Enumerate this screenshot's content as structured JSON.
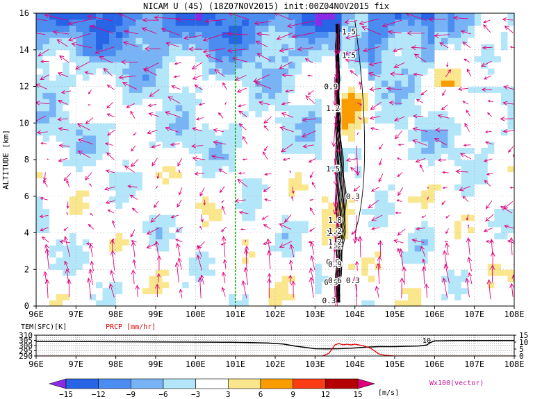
{
  "colors": {
    "vector": "#e0007a",
    "contour": "#000000",
    "reference_line": "#00aa00",
    "temperature_line": "#000000",
    "precip_line": "#e00000",
    "hatch": "#b4b4b4"
  },
  "chart_data": [
    {
      "type": "heatmap",
      "title": "NICAM U (4S) (18Z07NOV2015) init:00Z04NOV2015 fix",
      "xlabel": "",
      "ylabel": "ALTITUDE [km]",
      "xticks": [
        "96E",
        "97E",
        "98E",
        "99E",
        "100E",
        "101E",
        "102E",
        "103E",
        "104E",
        "105E",
        "106E",
        "107E",
        "108E"
      ],
      "yticks": [
        "0",
        "2",
        "4",
        "6",
        "8",
        "10",
        "12",
        "14",
        "16"
      ],
      "xlim": [
        96,
        108
      ],
      "ylim": [
        0,
        16
      ],
      "grid": true,
      "reference_longitude": 101,
      "colorbar": {
        "unit": "[m/s]",
        "levels": [
          -15,
          -12,
          -9,
          -6,
          -3,
          3,
          6,
          9,
          12,
          15
        ],
        "tick_labels": [
          "−15",
          "−12",
          "−9",
          "−6",
          "−3",
          "3",
          "6",
          "9",
          "12",
          "15"
        ],
        "colors": [
          "#8a2be8",
          "#2864e6",
          "#4b8cf0",
          "#78b4f5",
          "#b4e6fa",
          "#ffffff",
          "#fae68c",
          "#fa9b00",
          "#fa3c14",
          "#b40000",
          "#e0007a"
        ]
      },
      "vector_label": "Wx100(vector)",
      "contour_labels": [
        "0.3",
        "0.6",
        "0.9",
        "1.2",
        "1.5",
        "1.8",
        "0.3",
        "0.6",
        "0.9",
        "1.2",
        "1.5",
        "1.5",
        "1.2",
        "0.9",
        "0.6",
        "0.3",
        "0.3"
      ]
    },
    {
      "type": "line",
      "xticks": [
        "96E",
        "97E",
        "98E",
        "99E",
        "100E",
        "101E",
        "102E",
        "103E",
        "104E",
        "105E",
        "106E",
        "107E",
        "108E"
      ],
      "xlim": [
        96,
        108
      ],
      "left_axis_label": "TEM(SFC)[K]",
      "left_ticks": [
        "310",
        "305",
        "300",
        "295",
        "290"
      ],
      "left_ylim": [
        290,
        310
      ],
      "right_axis_label": "PRCP [mm/hr]",
      "right_ticks": [
        "15",
        "10",
        "5",
        "0"
      ],
      "right_ylim": [
        0,
        15
      ],
      "annotation": "10",
      "series": [
        {
          "name": "TEM(SFC)[K]",
          "x": [
            96.0,
            97.0,
            98.0,
            99.0,
            100.0,
            100.9,
            101.4,
            101.8,
            102.2,
            102.5,
            102.8,
            103.0,
            103.3,
            103.6,
            103.9,
            104.3,
            104.6,
            105.0,
            105.3,
            105.6,
            105.8,
            105.9,
            106.0,
            106.5,
            107.0,
            108.0
          ],
          "y": [
            304.0,
            303.9,
            303.7,
            303.5,
            303.3,
            303.1,
            302.9,
            302.5,
            301.5,
            299.5,
            298.0,
            297.0,
            296.8,
            297.0,
            297.5,
            298.5,
            299.0,
            299.0,
            299.3,
            299.6,
            300.5,
            303.0,
            304.5,
            304.8,
            304.8,
            304.8
          ]
        },
        {
          "name": "PRCP [mm/hr]",
          "x": [
            96.0,
            102.0,
            103.0,
            103.2,
            103.35,
            103.5,
            103.6,
            103.7,
            103.8,
            103.9,
            104.0,
            104.2,
            104.4,
            104.6,
            104.75,
            104.9,
            105.0,
            108.0
          ],
          "y": [
            0,
            0,
            0,
            0,
            2.0,
            8.0,
            9.0,
            8.0,
            8.5,
            8.0,
            8.5,
            7.5,
            5.5,
            1.5,
            0.5,
            0.2,
            0,
            0
          ]
        }
      ]
    }
  ]
}
